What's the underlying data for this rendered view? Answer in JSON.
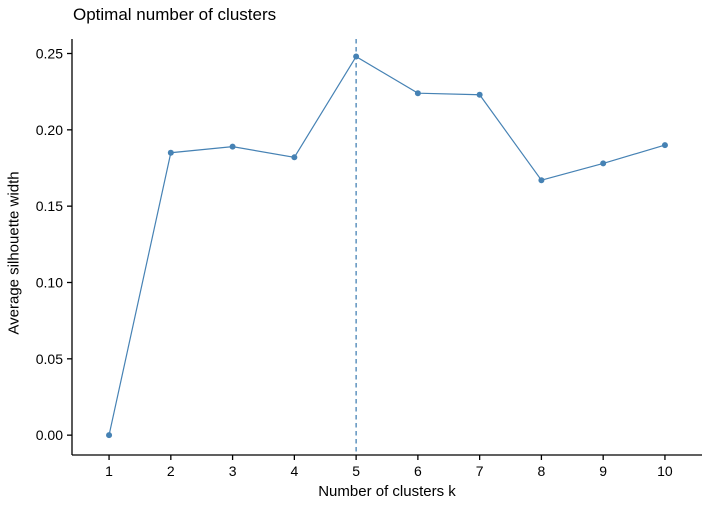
{
  "chart_data": {
    "type": "line",
    "title": "Optimal number of clusters",
    "xlabel": "Number of clusters k",
    "ylabel": "Average silhouette width",
    "x": [
      1,
      2,
      3,
      4,
      5,
      6,
      7,
      8,
      9,
      10
    ],
    "y": [
      0.0,
      0.185,
      0.189,
      0.182,
      0.248,
      0.224,
      0.223,
      0.167,
      0.178,
      0.19
    ],
    "x_ticks": [
      "1",
      "2",
      "3",
      "4",
      "5",
      "6",
      "7",
      "8",
      "9",
      "10"
    ],
    "x_tick_values": [
      1,
      2,
      3,
      4,
      5,
      6,
      7,
      8,
      9,
      10
    ],
    "y_ticks": [
      "0.00",
      "0.05",
      "0.10",
      "0.15",
      "0.20",
      "0.25"
    ],
    "y_tick_values": [
      0.0,
      0.05,
      0.1,
      0.15,
      0.2,
      0.25
    ],
    "xlim": [
      0.4,
      10.6
    ],
    "ylim": [
      -0.013,
      0.2595
    ],
    "vline_x": 5,
    "vline_style": "dashed",
    "marker": "circle",
    "grid": false,
    "legend": "none",
    "series_color": "#4682B4",
    "axis_color": "#000000"
  }
}
